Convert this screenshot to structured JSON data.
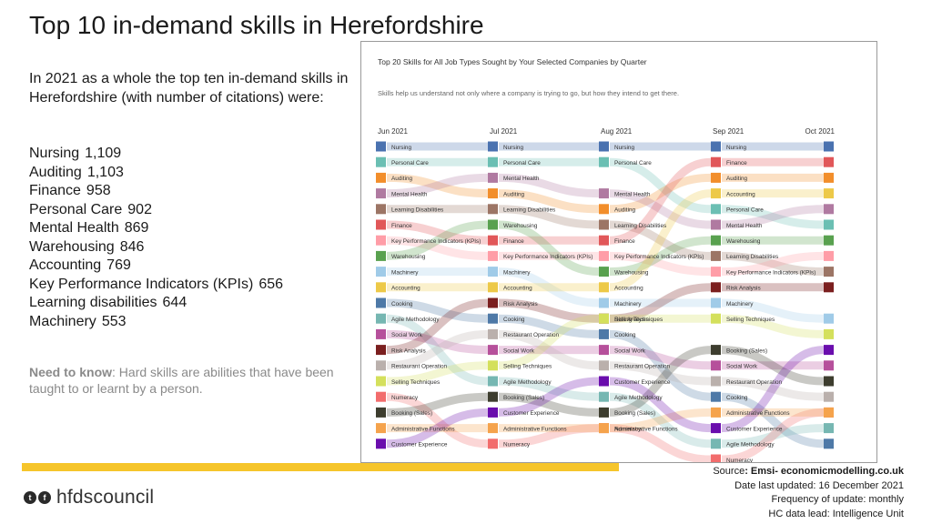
{
  "page": {
    "title": "Top 10 in-demand skills in Herefordshire",
    "intro": "In 2021 as a whole the top ten in-demand skills in Herefordshire (with number of citations) were:",
    "skills": [
      {
        "name": "Nursing",
        "count": "1,109"
      },
      {
        "name": "Auditing",
        "count": "1,103"
      },
      {
        "name": "Finance",
        "count": "958"
      },
      {
        "name": "Personal Care",
        "count": "902"
      },
      {
        "name": "Mental Health",
        "count": "869"
      },
      {
        "name": "Warehousing",
        "count": "846"
      },
      {
        "name": "Accounting",
        "count": "769"
      },
      {
        "name": "Key Performance Indicators (KPIs)",
        "count": "656"
      },
      {
        "name": "Learning disabilities",
        "count": "644"
      },
      {
        "name": "Machinery",
        "count": "553"
      }
    ],
    "need_label": "Need to know",
    "need_text": ":  Hard skills are abilities that have been taught to or learnt by a person.",
    "source_label": "Source",
    "source_value": ": Emsi- economicmodelling.co.uk",
    "date_updated": "Date last updated: 16 December 2021",
    "frequency": "Frequency of update: monthly",
    "data_lead": "HC data lead: Intelligence Unit",
    "logo_text": "hfdscouncil",
    "colors": {
      "accent_bar": "#f6c52b"
    }
  },
  "chart_data": {
    "type": "bump",
    "title": "Top 20 Skills for All Job Types Sought by Your Selected Companies by Quarter",
    "subtitle": "Skills help us understand not only where a company is trying to go, but how they intend to get there.",
    "quarters": [
      "Jun 2021",
      "Jul 2021",
      "Aug 2021",
      "Sep 2021",
      "Oct 2021"
    ],
    "skills": [
      {
        "name": "Nursing",
        "color": "#4a72b0",
        "ranks": [
          1,
          1,
          1,
          1,
          1
        ]
      },
      {
        "name": "Personal Care",
        "color": "#6bbfb3",
        "ranks": [
          2,
          2,
          2,
          5,
          6
        ]
      },
      {
        "name": "Auditing",
        "color": "#f28e2b",
        "ranks": [
          3,
          4,
          5,
          3,
          3
        ]
      },
      {
        "name": "Mental Health",
        "color": "#b07aa1",
        "ranks": [
          4,
          3,
          4,
          6,
          5
        ]
      },
      {
        "name": "Learning Disabilities",
        "color": "#9c7565",
        "ranks": [
          5,
          5,
          6,
          8,
          9
        ]
      },
      {
        "name": "Finance",
        "color": "#e15759",
        "ranks": [
          6,
          7,
          7,
          2,
          2
        ]
      },
      {
        "name": "Key Performance Indicators (KPIs)",
        "color": "#ff9da7",
        "ranks": [
          7,
          8,
          8,
          9,
          8
        ]
      },
      {
        "name": "Warehousing",
        "color": "#59a14f",
        "ranks": [
          8,
          6,
          9,
          7,
          7
        ]
      },
      {
        "name": "Machinery",
        "color": "#a0cbe8",
        "ranks": [
          9,
          9,
          11,
          11,
          12
        ]
      },
      {
        "name": "Accounting",
        "color": "#edc948",
        "ranks": [
          10,
          10,
          10,
          4,
          4
        ]
      },
      {
        "name": "Cooking",
        "color": "#4e79a7",
        "ranks": [
          11,
          12,
          13,
          17,
          20
        ]
      },
      {
        "name": "Agile Methodology",
        "color": "#76b7b2",
        "ranks": [
          12,
          16,
          17,
          20,
          19
        ]
      },
      {
        "name": "Social Work",
        "color": "#b6509b",
        "ranks": [
          13,
          14,
          14,
          15,
          15
        ]
      },
      {
        "name": "Risk Analysis",
        "color": "#7b1f1f",
        "ranks": [
          14,
          11,
          12,
          10,
          10
        ]
      },
      {
        "name": "Restaurant Operation",
        "color": "#bab0ac",
        "ranks": [
          15,
          13,
          15,
          16,
          17
        ]
      },
      {
        "name": "Selling Techniques",
        "color": "#d4e05c",
        "ranks": [
          16,
          15,
          12,
          12,
          13
        ]
      },
      {
        "name": "Numeracy",
        "color": "#f26c6c",
        "ranks": [
          17,
          20,
          19,
          21,
          18
        ]
      },
      {
        "name": "Booking (Sales)",
        "color": "#3d3d2e",
        "ranks": [
          18,
          17,
          18,
          14,
          16
        ]
      },
      {
        "name": "Administrative Functions",
        "color": "#f5a34c",
        "ranks": [
          19,
          19,
          19,
          18,
          18
        ]
      },
      {
        "name": "Customer Experience",
        "color": "#6a0dad",
        "ranks": [
          20,
          18,
          16,
          19,
          14
        ]
      }
    ]
  }
}
